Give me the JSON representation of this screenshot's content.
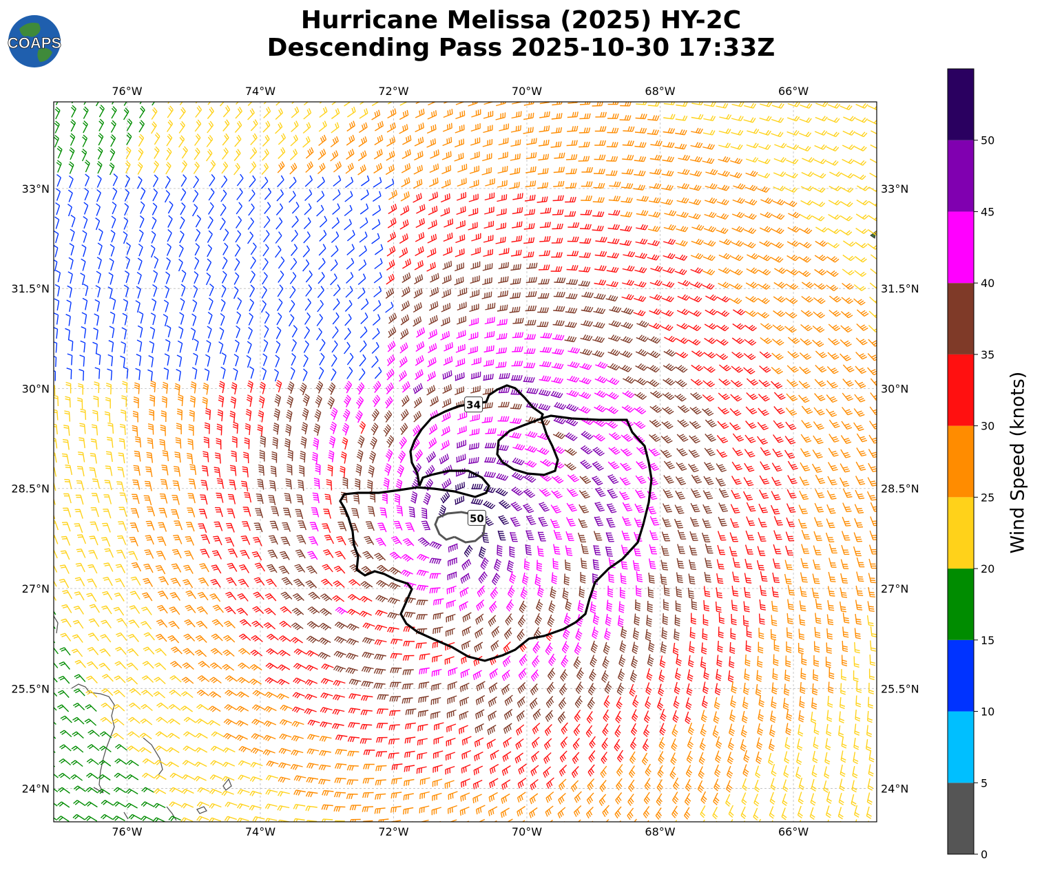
{
  "title": {
    "line1": "Hurricane Melissa (2025) HY-2C",
    "line2": "Descending Pass 2025-10-30 17:33Z"
  },
  "logo": {
    "text": "COAPS",
    "icon": "globe-logo-icon"
  },
  "map": {
    "lon_range": [
      -77.1,
      -64.75
    ],
    "lat_range": [
      23.5,
      34.3
    ],
    "lon_ticks": [
      {
        "value": -76,
        "label": "76°W"
      },
      {
        "value": -74,
        "label": "74°W"
      },
      {
        "value": -72,
        "label": "72°W"
      },
      {
        "value": -70,
        "label": "70°W"
      },
      {
        "value": -68,
        "label": "68°W"
      },
      {
        "value": -66,
        "label": "66°W"
      }
    ],
    "lat_ticks": [
      {
        "value": 24,
        "label": "24°N"
      },
      {
        "value": 25.5,
        "label": "25.5°N"
      },
      {
        "value": 27,
        "label": "27°N"
      },
      {
        "value": 28.5,
        "label": "28.5°N"
      },
      {
        "value": 30,
        "label": "30°N"
      },
      {
        "value": 31.5,
        "label": "31.5°N"
      },
      {
        "value": 33,
        "label": "33°N"
      }
    ],
    "grid": true,
    "storm_center": {
      "lon": -71.05,
      "lat": 27.9
    },
    "contours": [
      {
        "label": "34",
        "label_pos": {
          "lon": -70.8,
          "lat": 29.75
        }
      },
      {
        "label": "50",
        "label_pos": {
          "lon": -70.75,
          "lat": 28.05
        }
      }
    ]
  },
  "colorbar": {
    "label": "Wind Speed (knots)",
    "ticks": [
      "0",
      "5",
      "10",
      "15",
      "20",
      "25",
      "30",
      "35",
      "40",
      "45",
      "50"
    ],
    "bins": [
      {
        "min": 0,
        "max": 5,
        "color": "#555555"
      },
      {
        "min": 5,
        "max": 10,
        "color": "#00bfff"
      },
      {
        "min": 10,
        "max": 15,
        "color": "#0033ff"
      },
      {
        "min": 15,
        "max": 20,
        "color": "#008c00"
      },
      {
        "min": 20,
        "max": 25,
        "color": "#ffd21a"
      },
      {
        "min": 25,
        "max": 30,
        "color": "#ff8c00"
      },
      {
        "min": 30,
        "max": 35,
        "color": "#ff1010"
      },
      {
        "min": 35,
        "max": 40,
        "color": "#7f3a28"
      },
      {
        "min": 40,
        "max": 45,
        "color": "#ff00ff"
      },
      {
        "min": 45,
        "max": 50,
        "color": "#8000b0"
      },
      {
        "min": 50,
        "max": 55,
        "color": "#2a0060"
      }
    ]
  }
}
